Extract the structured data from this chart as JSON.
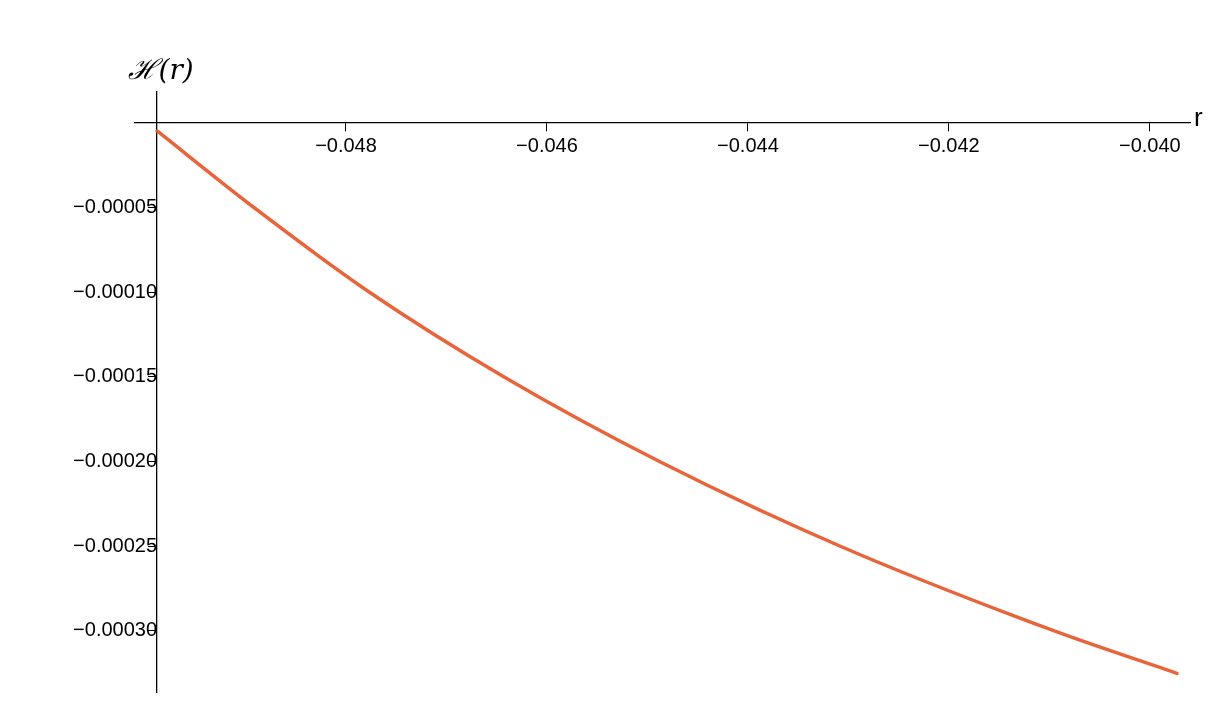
{
  "chart_data": {
    "type": "line",
    "xlabel": "r",
    "ylabel": "ℋ(r)",
    "xlim": [
      -0.0501,
      -0.0396
    ],
    "ylim": [
      -0.000336,
      1.8e-05
    ],
    "xticks": [
      {
        "value": -0.048,
        "label": "−0.048"
      },
      {
        "value": -0.046,
        "label": "−0.046"
      },
      {
        "value": -0.044,
        "label": "−0.044"
      },
      {
        "value": -0.042,
        "label": "−0.042"
      },
      {
        "value": -0.04,
        "label": "−0.040"
      }
    ],
    "yticks": [
      {
        "value": -5e-05,
        "label": "−0.00005"
      },
      {
        "value": -0.0001,
        "label": "−0.00010"
      },
      {
        "value": -0.00015,
        "label": "−0.00015"
      },
      {
        "value": -0.0002,
        "label": "−0.00020"
      },
      {
        "value": -0.00025,
        "label": "−0.00025"
      },
      {
        "value": -0.0003,
        "label": "−0.00030"
      }
    ],
    "grid": false,
    "legend": false,
    "marker": "none",
    "line_style": "solid",
    "series": [
      {
        "color": "#e8643a",
        "x": [
          -0.04988,
          -0.04892,
          -0.04777,
          -0.04643,
          -0.04488,
          -0.04308,
          -0.04095,
          -0.03973
        ],
        "values": [
          -5e-06,
          -5e-05,
          -0.0001,
          -0.00015,
          -0.0002,
          -0.00025,
          -0.0003,
          -0.000325
        ]
      }
    ]
  }
}
